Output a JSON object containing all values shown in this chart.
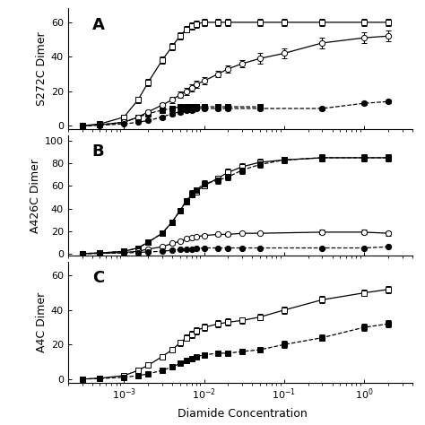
{
  "panel_A": {
    "label": "A",
    "ylabel": "S272C Dimer",
    "ylim": [
      -2,
      68
    ],
    "yticks": [
      0,
      20,
      40,
      60
    ],
    "yticklabels": [
      "0",
      "20",
      "40",
      "60"
    ],
    "series": [
      {
        "name": "open_square",
        "x": [
          0.0003,
          0.0005,
          0.001,
          0.0015,
          0.002,
          0.003,
          0.004,
          0.005,
          0.006,
          0.007,
          0.008,
          0.01,
          0.015,
          0.02,
          0.05,
          0.1,
          0.3,
          1.0,
          2.0
        ],
        "y": [
          0,
          1,
          5,
          15,
          25,
          38,
          46,
          52,
          56,
          58,
          59,
          60,
          60,
          60,
          60,
          60,
          60,
          60,
          60
        ],
        "yerr": [
          0.3,
          0.5,
          1,
          2,
          2,
          2,
          2,
          2,
          2,
          2,
          2,
          2,
          2,
          2,
          2,
          2,
          2,
          2,
          2
        ],
        "marker": "s",
        "fillstyle": "none",
        "linestyle": "-"
      },
      {
        "name": "filled_square",
        "x": [
          0.0003,
          0.0005,
          0.001,
          0.0015,
          0.002,
          0.003,
          0.004,
          0.005,
          0.006,
          0.007,
          0.008,
          0.01,
          0.015,
          0.02,
          0.05
        ],
        "y": [
          0,
          0.5,
          2,
          5,
          7,
          9,
          10,
          11,
          11,
          11,
          11,
          11,
          11,
          11,
          11
        ],
        "yerr": [
          0.2,
          0.3,
          0.5,
          1,
          1,
          1,
          1,
          1,
          1,
          1,
          1,
          1,
          1,
          1,
          1
        ],
        "marker": "s",
        "fillstyle": "full",
        "linestyle": "--"
      },
      {
        "name": "open_circle",
        "x": [
          0.0003,
          0.0005,
          0.001,
          0.0015,
          0.002,
          0.003,
          0.004,
          0.005,
          0.006,
          0.007,
          0.008,
          0.01,
          0.015,
          0.02,
          0.03,
          0.05,
          0.1,
          0.3,
          1.0,
          2.0
        ],
        "y": [
          0,
          0.5,
          2,
          5,
          8,
          12,
          15,
          18,
          20,
          22,
          24,
          26,
          30,
          33,
          36,
          39,
          42,
          48,
          51,
          52
        ],
        "yerr": [
          0.2,
          0.3,
          0.5,
          1,
          1,
          1,
          2,
          2,
          2,
          2,
          2,
          2,
          2,
          2,
          2,
          3,
          3,
          3,
          3,
          3
        ],
        "marker": "o",
        "fillstyle": "none",
        "linestyle": "-"
      },
      {
        "name": "filled_circle",
        "x": [
          0.0003,
          0.0005,
          0.001,
          0.0015,
          0.002,
          0.003,
          0.004,
          0.005,
          0.006,
          0.007,
          0.008,
          0.01,
          0.015,
          0.02,
          0.05,
          0.3,
          1.0,
          2.0
        ],
        "y": [
          0,
          0.3,
          1,
          2,
          3,
          5,
          7,
          8,
          9,
          9,
          10,
          10,
          10,
          10,
          10,
          10,
          13,
          14
        ],
        "yerr": [
          0.2,
          0.2,
          0.3,
          0.5,
          0.5,
          1,
          1,
          1,
          1,
          1,
          1,
          1,
          1,
          1,
          1,
          1,
          1,
          1
        ],
        "marker": "o",
        "fillstyle": "full",
        "linestyle": "--"
      }
    ]
  },
  "panel_B": {
    "label": "B",
    "ylabel": "A426C Dimer",
    "ylim": [
      -2,
      105
    ],
    "yticks": [
      0,
      20,
      40,
      60,
      80,
      100
    ],
    "yticklabels": [
      "0",
      "20",
      "40",
      "60",
      "80",
      "100"
    ],
    "series": [
      {
        "name": "open_square",
        "x": [
          0.0003,
          0.0005,
          0.001,
          0.0015,
          0.002,
          0.003,
          0.004,
          0.005,
          0.006,
          0.007,
          0.008,
          0.01,
          0.015,
          0.02,
          0.03,
          0.05,
          0.1,
          0.3,
          1.0,
          2.0
        ],
        "y": [
          0,
          0.5,
          2,
          5,
          10,
          18,
          28,
          38,
          46,
          52,
          55,
          60,
          67,
          72,
          77,
          81,
          83,
          85,
          85,
          85
        ],
        "yerr": [
          0.2,
          0.3,
          0.5,
          1,
          1,
          2,
          2,
          2,
          2,
          2,
          2,
          2,
          2,
          3,
          3,
          3,
          3,
          3,
          3,
          3
        ],
        "marker": "s",
        "fillstyle": "none",
        "linestyle": "-"
      },
      {
        "name": "filled_square",
        "x": [
          0.0003,
          0.0005,
          0.001,
          0.0015,
          0.002,
          0.003,
          0.004,
          0.005,
          0.006,
          0.007,
          0.008,
          0.01,
          0.015,
          0.02,
          0.03,
          0.05,
          0.1,
          0.3,
          1.0,
          2.0
        ],
        "y": [
          0,
          0.5,
          2,
          5,
          10,
          18,
          28,
          38,
          47,
          53,
          56,
          62,
          65,
          68,
          74,
          79,
          83,
          85,
          85,
          85
        ],
        "yerr": [
          0.2,
          0.3,
          0.5,
          1,
          1,
          2,
          2,
          2,
          2,
          3,
          3,
          3,
          3,
          3,
          3,
          3,
          3,
          3,
          3,
          3
        ],
        "marker": "s",
        "fillstyle": "full",
        "linestyle": "--"
      },
      {
        "name": "open_circle",
        "x": [
          0.0003,
          0.0005,
          0.001,
          0.0015,
          0.002,
          0.003,
          0.004,
          0.005,
          0.006,
          0.007,
          0.008,
          0.01,
          0.015,
          0.02,
          0.03,
          0.05,
          0.3,
          1.0,
          2.0
        ],
        "y": [
          0,
          0.3,
          1,
          2,
          4,
          6,
          9,
          11,
          13,
          14,
          15,
          16,
          17,
          17,
          18,
          18,
          19,
          19,
          18
        ],
        "yerr": [
          0.1,
          0.2,
          0.3,
          0.5,
          0.5,
          1,
          1,
          1,
          1,
          1,
          1,
          1,
          1,
          1,
          1,
          1,
          2,
          2,
          2
        ],
        "marker": "o",
        "fillstyle": "none",
        "linestyle": "-"
      },
      {
        "name": "filled_circle",
        "x": [
          0.0003,
          0.0005,
          0.001,
          0.0015,
          0.002,
          0.003,
          0.004,
          0.005,
          0.006,
          0.007,
          0.008,
          0.01,
          0.015,
          0.02,
          0.03,
          0.05,
          0.3,
          1.0,
          2.0
        ],
        "y": [
          0,
          0.2,
          0.5,
          1,
          1.5,
          2,
          3,
          3.5,
          4,
          4,
          4.5,
          5,
          5,
          5,
          5,
          5,
          5,
          5,
          6
        ],
        "yerr": [
          0.1,
          0.1,
          0.2,
          0.3,
          0.3,
          0.3,
          0.5,
          0.5,
          0.5,
          0.5,
          0.5,
          0.5,
          0.5,
          0.5,
          0.5,
          0.5,
          0.5,
          0.5,
          0.5
        ],
        "marker": "o",
        "fillstyle": "full",
        "linestyle": "--"
      }
    ]
  },
  "panel_C": {
    "label": "C",
    "ylabel": "A4C Dimer",
    "ylim": [
      -2,
      68
    ],
    "yticks": [
      0,
      20,
      40,
      60
    ],
    "yticklabels": [
      "0",
      "20",
      "40",
      "60"
    ],
    "series": [
      {
        "name": "open_square",
        "x": [
          0.0003,
          0.0005,
          0.001,
          0.0015,
          0.002,
          0.003,
          0.004,
          0.005,
          0.006,
          0.007,
          0.008,
          0.01,
          0.015,
          0.02,
          0.03,
          0.05,
          0.1,
          0.3,
          1.0,
          2.0
        ],
        "y": [
          0,
          0.5,
          2,
          5,
          8,
          13,
          17,
          21,
          24,
          26,
          28,
          30,
          32,
          33,
          34,
          36,
          40,
          46,
          50,
          52
        ],
        "yerr": [
          0.2,
          0.3,
          0.5,
          1,
          1,
          1,
          1,
          2,
          2,
          2,
          2,
          2,
          2,
          2,
          2,
          2,
          2,
          2,
          2,
          2
        ],
        "marker": "s",
        "fillstyle": "none",
        "linestyle": "-"
      },
      {
        "name": "filled_square",
        "x": [
          0.0003,
          0.0005,
          0.001,
          0.0015,
          0.002,
          0.003,
          0.004,
          0.005,
          0.006,
          0.007,
          0.008,
          0.01,
          0.015,
          0.02,
          0.03,
          0.05,
          0.1,
          0.3,
          1.0,
          2.0
        ],
        "y": [
          0,
          0.3,
          1,
          2,
          3,
          5,
          7,
          9,
          11,
          12,
          13,
          14,
          15,
          15,
          16,
          17,
          20,
          24,
          30,
          32
        ],
        "yerr": [
          0.1,
          0.2,
          0.3,
          0.5,
          0.5,
          1,
          1,
          1,
          1,
          1,
          1,
          1,
          1,
          1,
          1,
          1,
          2,
          2,
          2,
          2
        ],
        "marker": "s",
        "fillstyle": "full",
        "linestyle": "--"
      }
    ]
  },
  "xlim": [
    0.0002,
    4
  ],
  "background_color": "#ffffff",
  "panel_label_fontsize": 13,
  "axis_label_fontsize": 9,
  "tick_fontsize": 8,
  "marker_size": 4.5,
  "linewidth": 0.9,
  "capsize": 2,
  "elinewidth": 0.8
}
